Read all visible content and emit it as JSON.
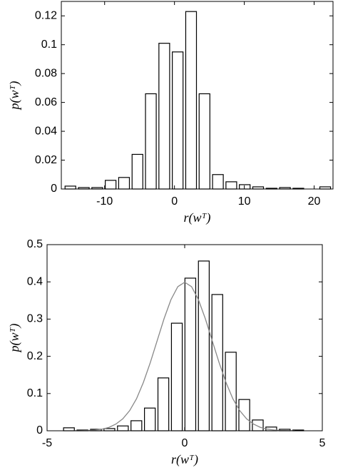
{
  "chart_data": [
    {
      "type": "histogram",
      "xlabel": "r(wᵀ)",
      "ylabel": "p(wᵀ)",
      "bins": [
        -15.86,
        -13.94,
        -12.02,
        -10.1,
        -8.18,
        -6.26,
        -4.34,
        -2.42,
        -0.5,
        1.42,
        3.34,
        5.26,
        7.18,
        9.1,
        11.02,
        12.94,
        14.86,
        16.78,
        18.7,
        20.62,
        22.54
      ],
      "values": [
        0.002,
        0.001,
        0.001,
        0.006,
        0.008,
        0.024,
        0.066,
        0.101,
        0.095,
        0.123,
        0.066,
        0.01,
        0.005,
        0.003,
        0.0015,
        0.0005,
        0.001,
        0.0005,
        0,
        0.0015
      ],
      "color": "#ffffff",
      "xlim": [
        -16.2,
        22.7
      ],
      "ylim": [
        0,
        0.13
      ],
      "xticks": [
        -10,
        0,
        10,
        20
      ],
      "yticks": [
        0,
        0.02,
        0.04,
        0.06,
        0.08,
        0.1,
        0.12
      ]
    },
    {
      "type": "histogram",
      "xlabel": "r(wᵀ)",
      "ylabel": "p(wᵀ)",
      "bins": [
        -4.45,
        -3.96,
        -3.47,
        -2.98,
        -2.49,
        -2.0,
        -1.51,
        -1.02,
        -0.53,
        -0.04,
        0.45,
        0.94,
        1.43,
        1.92,
        2.41,
        2.9,
        3.39,
        3.88,
        4.37,
        4.86
      ],
      "values": [
        0.008,
        0.002,
        0.004,
        0.006,
        0.013,
        0.027,
        0.061,
        0.142,
        0.289,
        0.41,
        0.456,
        0.366,
        0.211,
        0.084,
        0.029,
        0.01,
        0.004,
        0.002,
        0
      ],
      "color": "#ffffff",
      "curve": {
        "color": "#888888",
        "x": [
          -4,
          -3.75,
          -3.5,
          -3.25,
          -3,
          -2.75,
          -2.5,
          -2.25,
          -2,
          -1.75,
          -1.5,
          -1.25,
          -1,
          -0.75,
          -0.5,
          -0.25,
          0,
          0.25,
          0.5,
          0.75,
          1,
          1.25,
          1.5,
          1.75,
          2,
          2.25,
          2.5,
          2.75,
          3,
          3.25,
          3.5,
          3.75,
          4
        ],
        "values": [
          0.0001,
          0.0004,
          0.0009,
          0.002,
          0.0044,
          0.0091,
          0.018,
          0.032,
          0.054,
          0.086,
          0.13,
          0.183,
          0.242,
          0.301,
          0.352,
          0.387,
          0.399,
          0.387,
          0.352,
          0.301,
          0.242,
          0.183,
          0.13,
          0.086,
          0.054,
          0.032,
          0.018,
          0.0091,
          0.0044,
          0.002,
          0.0009,
          0.0004,
          0.0001
        ]
      },
      "xlim": [
        -5,
        5
      ],
      "ylim": [
        0,
        0.5
      ],
      "xticks": [
        -5,
        0,
        5
      ],
      "yticks": [
        0,
        0.1,
        0.2,
        0.3,
        0.4,
        0.5
      ]
    }
  ]
}
